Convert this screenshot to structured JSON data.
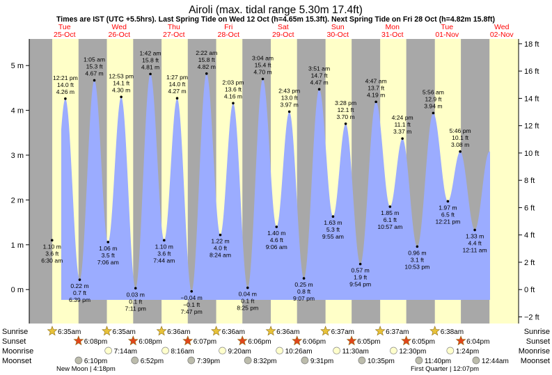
{
  "chart_data": {
    "type": "area",
    "title": "Airoli (max. tidal range 5.30m 17.4ft)",
    "subtitle": "Times are IST (UTC +5.5hrs). Last Spring Tide on Wed 12 Oct (h=4.65m 15.3ft). Next Spring Tide on Fri 28 Oct (h=4.82m 15.8ft)",
    "ylim_m": [
      -0.7,
      5.55
    ],
    "left_ticks": [
      {
        "value": 0,
        "label": "0 m"
      },
      {
        "value": 1,
        "label": "1 m"
      },
      {
        "value": 2,
        "label": "2 m"
      },
      {
        "value": 3,
        "label": "3 m"
      },
      {
        "value": 4,
        "label": "4 m"
      },
      {
        "value": 5,
        "label": "5 m"
      }
    ],
    "right_ticks": [
      {
        "value": -2,
        "label": "−2 ft"
      },
      {
        "value": 0,
        "label": "0 ft"
      },
      {
        "value": 2,
        "label": "2 ft"
      },
      {
        "value": 4,
        "label": "4 ft"
      },
      {
        "value": 6,
        "label": "6 ft"
      },
      {
        "value": 8,
        "label": "8 ft"
      },
      {
        "value": 10,
        "label": "10 ft"
      },
      {
        "value": 12,
        "label": "12 ft"
      },
      {
        "value": 14,
        "label": "14 ft"
      },
      {
        "value": 16,
        "label": "16 ft"
      },
      {
        "value": 18,
        "label": "18 ft"
      }
    ],
    "days": [
      {
        "dow": "Tue",
        "date": "25-Oct"
      },
      {
        "dow": "Wed",
        "date": "26-Oct"
      },
      {
        "dow": "Thu",
        "date": "27-Oct"
      },
      {
        "dow": "Fri",
        "date": "28-Oct"
      },
      {
        "dow": "Sat",
        "date": "29-Oct"
      },
      {
        "dow": "Sun",
        "date": "30-Oct"
      },
      {
        "dow": "Mon",
        "date": "31-Oct"
      },
      {
        "dow": "Tue",
        "date": "01-Nov"
      },
      {
        "dow": "Wed",
        "date": "02-Nov"
      }
    ],
    "tides": [
      {
        "time": "6:30 am",
        "h": 1.1,
        "m": "1.10 m",
        "ft": "3.6 ft",
        "type": "low"
      },
      {
        "time": "12:21 pm",
        "h": 4.26,
        "m": "4.26 m",
        "ft": "14.0 ft",
        "type": "high"
      },
      {
        "time": "6:39 pm",
        "h": 0.22,
        "m": "0.22 m",
        "ft": "0.7 ft",
        "type": "low"
      },
      {
        "time": "1:05 am",
        "h": 4.67,
        "m": "4.67 m",
        "ft": "15.3 ft",
        "type": "high"
      },
      {
        "time": "7:06 am",
        "h": 1.06,
        "m": "1.06 m",
        "ft": "3.5 ft",
        "type": "low"
      },
      {
        "time": "12:53 pm",
        "h": 4.3,
        "m": "4.30 m",
        "ft": "14.1 ft",
        "type": "high"
      },
      {
        "time": "7:11 pm",
        "h": 0.03,
        "m": "0.03 m",
        "ft": "0.1 ft",
        "type": "low"
      },
      {
        "time": "1:42 am",
        "h": 4.81,
        "m": "4.81 m",
        "ft": "15.8 ft",
        "type": "high"
      },
      {
        "time": "7:44 am",
        "h": 1.1,
        "m": "1.10 m",
        "ft": "3.6 ft",
        "type": "low"
      },
      {
        "time": "1:27 pm",
        "h": 4.27,
        "m": "4.27 m",
        "ft": "14.0 ft",
        "type": "high"
      },
      {
        "time": "7:47 pm",
        "h": -0.04,
        "m": "−0.04 m",
        "ft": "−0.1 ft",
        "type": "low"
      },
      {
        "time": "2:22 am",
        "h": 4.82,
        "m": "4.82 m",
        "ft": "15.8 ft",
        "type": "high"
      },
      {
        "time": "8:24 am",
        "h": 1.22,
        "m": "1.22 m",
        "ft": "4.0 ft",
        "type": "low"
      },
      {
        "time": "2:03 pm",
        "h": 4.16,
        "m": "4.16 m",
        "ft": "13.6 ft",
        "type": "high"
      },
      {
        "time": "8:25 pm",
        "h": 0.04,
        "m": "0.04 m",
        "ft": "0.1 ft",
        "type": "low"
      },
      {
        "time": "3:04 am",
        "h": 4.7,
        "m": "4.70 m",
        "ft": "15.4 ft",
        "type": "high"
      },
      {
        "time": "9:06 am",
        "h": 1.4,
        "m": "1.40 m",
        "ft": "4.6 ft",
        "type": "low"
      },
      {
        "time": "2:43 pm",
        "h": 3.97,
        "m": "3.97 m",
        "ft": "13.0 ft",
        "type": "high"
      },
      {
        "time": "9:07 pm",
        "h": 0.25,
        "m": "0.25 m",
        "ft": "0.8 ft",
        "type": "low"
      },
      {
        "time": "3:51 am",
        "h": 4.47,
        "m": "4.47 m",
        "ft": "14.7 ft",
        "type": "high"
      },
      {
        "time": "9:55 am",
        "h": 1.63,
        "m": "1.63 m",
        "ft": "5.3 ft",
        "type": "low"
      },
      {
        "time": "3:28 pm",
        "h": 3.7,
        "m": "3.70 m",
        "ft": "12.1 ft",
        "type": "high"
      },
      {
        "time": "9:54 pm",
        "h": 0.57,
        "m": "0.57 m",
        "ft": "1.9 ft",
        "type": "low"
      },
      {
        "time": "4:47 am",
        "h": 4.19,
        "m": "4.19 m",
        "ft": "13.7 ft",
        "type": "high"
      },
      {
        "time": "10:57 am",
        "h": 1.85,
        "m": "1.85 m",
        "ft": "6.1 ft",
        "type": "low"
      },
      {
        "time": "4:24 pm",
        "h": 3.37,
        "m": "3.37 m",
        "ft": "11.1 ft",
        "type": "high"
      },
      {
        "time": "10:53 pm",
        "h": 0.96,
        "m": "0.96 m",
        "ft": "3.1 ft",
        "type": "low"
      },
      {
        "time": "5:56 am",
        "h": 3.94,
        "m": "3.94 m",
        "ft": "12.9 ft",
        "type": "high"
      },
      {
        "time": "12:21 pm",
        "h": 1.97,
        "m": "1.97 m",
        "ft": "6.5 ft",
        "type": "low"
      },
      {
        "time": "5:46 pm",
        "h": 3.08,
        "m": "3.08 m",
        "ft": "10.1 ft",
        "type": "high"
      },
      {
        "time": "12:11 am",
        "h": 1.33,
        "m": "1.33 m",
        "ft": "4.4 ft",
        "type": "low"
      }
    ],
    "astro_labels": {
      "sunrise": "Sunrise",
      "sunset": "Sunset",
      "moonrise": "Moonrise",
      "moonset": "Moonset"
    },
    "sunrise": [
      "6:35am",
      "6:35am",
      "6:36am",
      "6:36am",
      "6:36am",
      "6:37am",
      "6:37am",
      "6:38am"
    ],
    "sunset": [
      "6:08pm",
      "6:08pm",
      "6:07pm",
      "6:06pm",
      "6:06pm",
      "6:05pm",
      "6:05pm",
      "6:04pm"
    ],
    "moonrise": [
      "7:14am",
      "8:16am",
      "9:20am",
      "10:26am",
      "11:30am",
      "12:30pm",
      "1:24pm"
    ],
    "moonset": [
      "6:10pm",
      "6:52pm",
      "7:39pm",
      "8:32pm",
      "9:31pm",
      "10:35pm",
      "11:40pm",
      "12:44am"
    ],
    "moon_phases": [
      {
        "label": "New Moon | 4:18pm"
      },
      {
        "label": "First Quarter | 12:07pm"
      }
    ],
    "colors": {
      "night": "#a8a8a8",
      "day": "#ffffc8",
      "water": "#9bacff",
      "date_text": "#ff0000",
      "sunrise_star": "#e8c23a",
      "sunset_star": "#e0461c",
      "moonrise_circle": "#ffffcc",
      "moonset_circle": "#bcbcac"
    }
  }
}
